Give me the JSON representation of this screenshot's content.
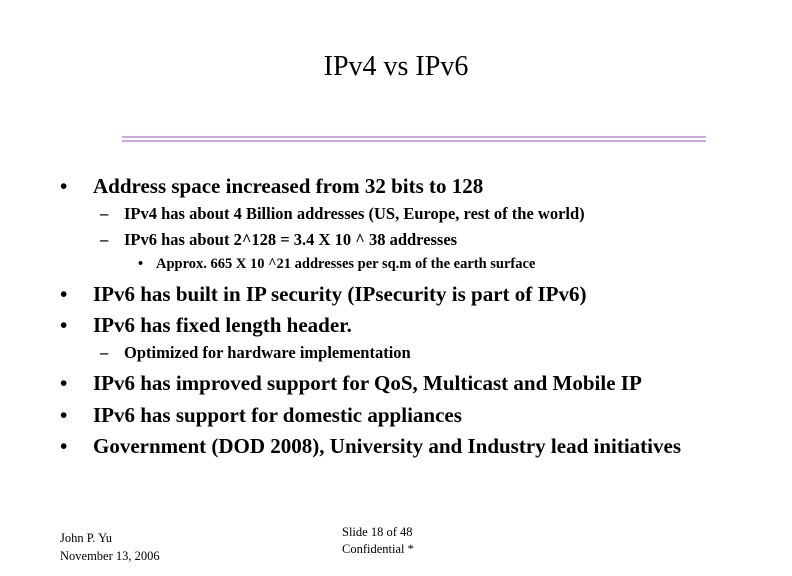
{
  "slide": {
    "title": "IPv4 vs IPv6",
    "accent_color": "#c9a8e6",
    "bullets": {
      "b1": "Address space increased from 32 bits to 128",
      "b1_sub1": "IPv4 has about 4 Billion addresses (US, Europe, rest of the world)",
      "b1_sub2": "IPv6 has about 2^128 = 3.4 X 10 ^ 38 addresses",
      "b1_sub2_sub1": "Approx. 665 X 10 ^21 addresses per sq.m of the earth surface",
      "b2": "IPv6 has built in IP security (IPsecurity is part of IPv6)",
      "b3": "IPv6 has fixed length header.",
      "b3_sub1": "Optimized for hardware implementation",
      "b4": "IPv6 has improved support for QoS, Multicast and Mobile IP",
      "b5": "IPv6 has support for domestic appliances",
      "b6": "Government (DOD 2008), University and Industry lead initiatives"
    },
    "bullet_glyph": "•",
    "dash_glyph": "–"
  },
  "footer": {
    "author": "John P. Yu",
    "date": "November 13, 2006",
    "slide_number": "Slide 18  of 48",
    "confidential": "Confidential *"
  }
}
